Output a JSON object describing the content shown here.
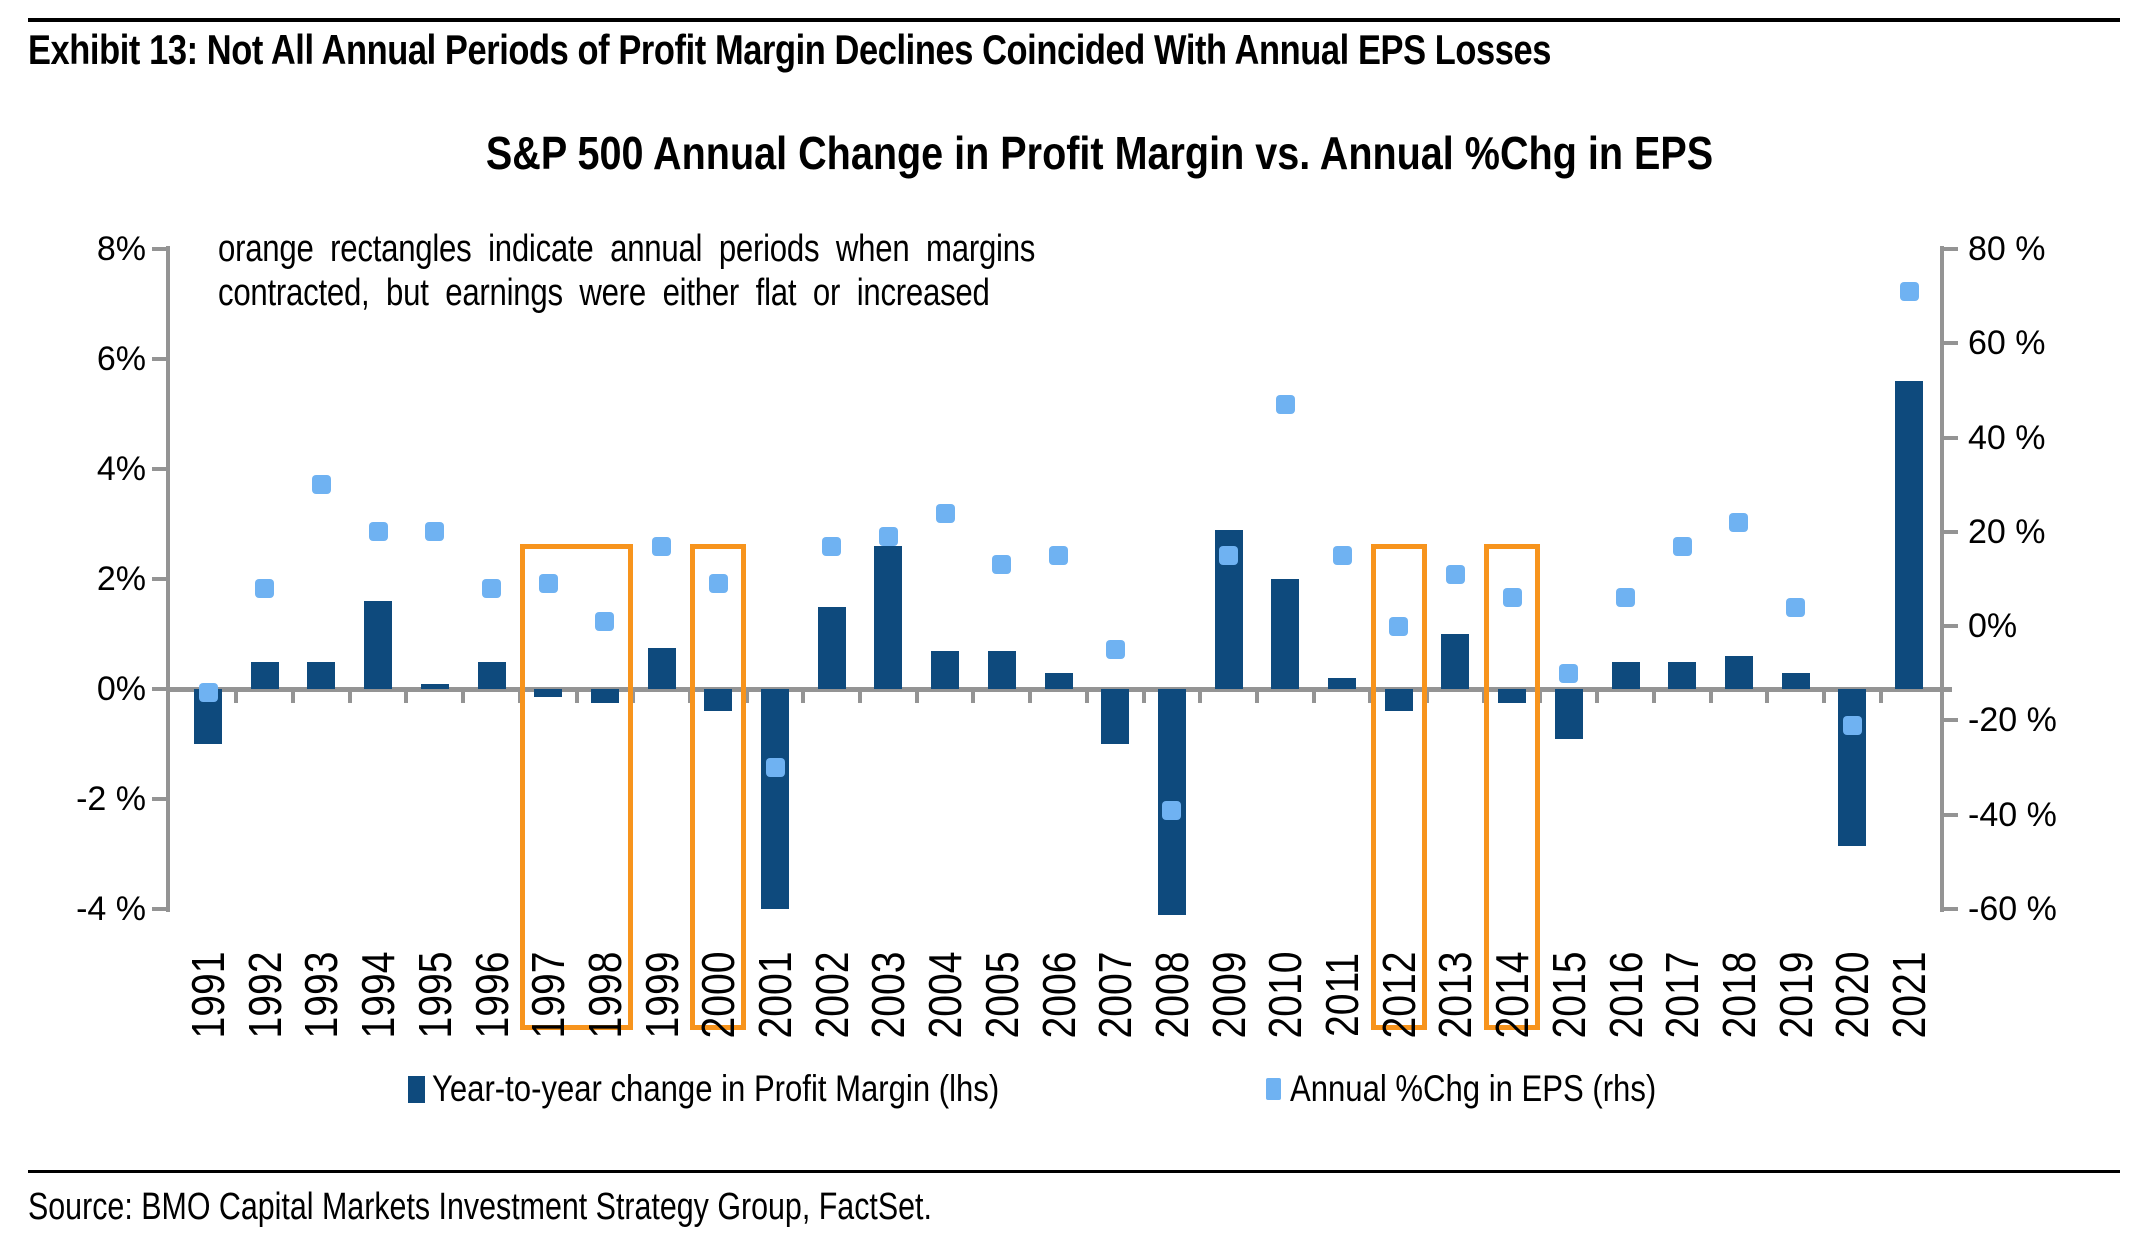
{
  "header": {
    "exhibit_title": "Exhibit 13: Not All Annual Periods of Profit Margin Declines Coincided With Annual EPS Losses",
    "chart_title": "S&P 500 Annual Change in Profit Margin vs. Annual %Chg in EPS"
  },
  "annotation": {
    "line1": "orange rectangles indicate annual periods when margins",
    "line2": "contracted, but earnings were either flat or increased"
  },
  "legend": {
    "items": [
      {
        "label": "Year-to-year change in Profit Margin (lhs)",
        "marker": "navy-bar"
      },
      {
        "label": "Annual %Chg in EPS (rhs)",
        "marker": "lightblue-square"
      }
    ]
  },
  "source": "Source: BMO Capital Markets Investment Strategy Group, FactSet.",
  "colors": {
    "profit_margin_bar": "#0e4a7d",
    "eps_square": "#6fb2f2",
    "highlight_orange": "#f7941d",
    "axis_gray": "#949494",
    "text": "#000000"
  },
  "chart_data": {
    "type": "bar",
    "title": "S&P 500 Annual Change in Profit Margin vs. Annual %Chg in EPS",
    "categories": [
      "1991",
      "1992",
      "1993",
      "1994",
      "1995",
      "1996",
      "1997",
      "1998",
      "1999",
      "2000",
      "2001",
      "2002",
      "2003",
      "2004",
      "2005",
      "2006",
      "2007",
      "2008",
      "2009",
      "2010",
      "2011",
      "2012",
      "2013",
      "2014",
      "2015",
      "2016",
      "2017",
      "2018",
      "2019",
      "2020",
      "2021"
    ],
    "series": [
      {
        "name": "Year-to-year change in Profit Margin (lhs)",
        "style": "bar",
        "axis": "left",
        "unit": "percentage points",
        "values": [
          -1.0,
          0.5,
          0.5,
          1.6,
          0.1,
          0.5,
          -0.15,
          -0.25,
          0.75,
          -0.4,
          -4.0,
          1.5,
          2.6,
          0.7,
          0.7,
          0.3,
          -1.0,
          -4.1,
          2.9,
          2.0,
          0.2,
          -0.4,
          1.0,
          -0.25,
          -0.9,
          0.5,
          0.5,
          0.6,
          0.3,
          -2.85,
          5.6
        ]
      },
      {
        "name": "Annual %Chg in EPS (rhs)",
        "style": "square-marker",
        "axis": "right",
        "unit": "percent",
        "values": [
          -14,
          8,
          30,
          20,
          20,
          8,
          9,
          1,
          17,
          9,
          -30,
          17,
          19,
          24,
          13,
          15,
          -5,
          -39,
          15,
          47,
          15,
          0,
          11,
          6,
          -10,
          6,
          17,
          22,
          4,
          -21,
          71
        ]
      }
    ],
    "left_axis": {
      "min": -4,
      "max": 8,
      "tick_step": 2,
      "tick_labels": [
        "8%",
        "6%",
        "4%",
        "2%",
        "0%",
        "-2 %",
        "-4 %"
      ]
    },
    "right_axis": {
      "min": -60,
      "max": 80,
      "tick_step": 20,
      "tick_labels": [
        "80 %",
        "60 %",
        "40 %",
        "20 %",
        "0%",
        "-20 %",
        "-40 %",
        "-60 %"
      ]
    },
    "highlight_groups": [
      [
        "1997",
        "1998"
      ],
      [
        "2000"
      ],
      [
        "2012"
      ],
      [
        "2014"
      ]
    ],
    "grid": "none",
    "legend_position": "bottom"
  }
}
